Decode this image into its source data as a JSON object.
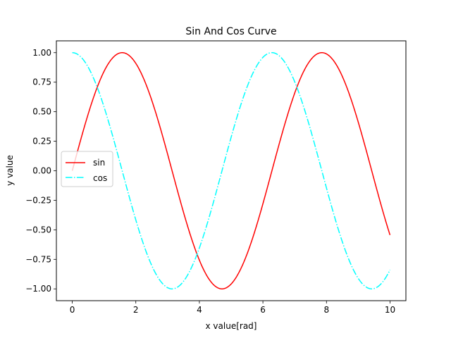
{
  "chart_data": {
    "type": "line",
    "title": "Sin And Cos Curve",
    "xlabel": "x value[rad]",
    "ylabel": "y value",
    "xlim": [
      -0.5,
      10.5
    ],
    "ylim": [
      -1.1,
      1.1
    ],
    "x_range": [
      0,
      10
    ],
    "x_ticks": [
      0,
      2,
      4,
      6,
      8,
      10
    ],
    "x_tick_labels": [
      "0",
      "2",
      "4",
      "6",
      "8",
      "10"
    ],
    "y_ticks": [
      1.0,
      0.75,
      0.5,
      0.25,
      0.0,
      -0.25,
      -0.5,
      -0.75,
      -1.0
    ],
    "y_tick_labels": [
      "1.00",
      "0.75",
      "0.50",
      "0.25",
      "0.00",
      "−0.25",
      "−0.50",
      "−0.75",
      "−1.00"
    ],
    "grid": false,
    "legend_position": "center-left",
    "series": [
      {
        "name": "sin",
        "function": "sin",
        "color": "#ff0000",
        "linestyle": "solid"
      },
      {
        "name": "cos",
        "function": "cos",
        "color": "#00ffff",
        "linestyle": "dashdot"
      }
    ]
  }
}
